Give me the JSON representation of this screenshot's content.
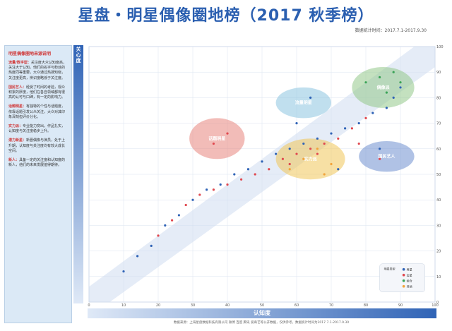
{
  "header": {
    "title": "星盘・明星偶像圈地榜（2017 秋季榜）",
    "period": "数据统计时间：2017.7.1-2017.9.30"
  },
  "sidebar": {
    "title": "明星偶像圈地来源说明",
    "items": [
      {
        "term": "流量/数字型：",
        "text": "关注度大众认知度高，关注大于认知。他们的名字与粉丝的热度同等重要，大众通过热搜知晓，关注度更高，辨识度略低于关注度。"
      },
      {
        "term": "国民艺人：",
        "text": "经受了时间的考验，观众积累的厚度，他们在各自领域都有很高的认可与口碑，有一定的影响力。"
      },
      {
        "term": "话题明星：",
        "text": "有独特的个性与话题度，依靠话题引发公众关注，大众对其印象深刻但评价分化。"
      },
      {
        "term": "实力派：",
        "text": "专业能力突出，作品扎实，认知度与关注度稳步上升。"
      },
      {
        "term": "潜力新星：",
        "text": "新晋偶像与演员，处于上升期，认知度与关注度均有较大成长空间。"
      },
      {
        "term": "新人：",
        "text": "具备一定的关注度和认知度的新人，他们的未来发展值得期待。"
      }
    ]
  },
  "axes": {
    "ylabel": "关\n心\n度",
    "xlabel": "认知度"
  },
  "footer": "数据来源：上海星盘数据科技有限公司 微博 百度 腾讯 爱奇艺等公开数据，仅供参考，数据统计时间为2017.7.1-2017.9.30",
  "legend": {
    "title": "明星类型",
    "items": [
      "男星",
      "女星",
      "组合",
      "其他"
    ]
  },
  "colors": {
    "male": "#2f63b6",
    "female": "#e0484f",
    "group": "#3aa357",
    "other": "#f2a33a",
    "accent": "#2b5fb0"
  },
  "chart_data": {
    "type": "scatter",
    "xlabel": "认知度",
    "ylabel": "关心度",
    "xlim": [
      0,
      100
    ],
    "ylim": [
      0,
      100
    ],
    "x_ticks": [
      0,
      10,
      20,
      30,
      40,
      50,
      60,
      70,
      80,
      90,
      100
    ],
    "y_ticks": [
      0,
      10,
      20,
      30,
      40,
      50,
      60,
      70,
      80,
      90,
      100
    ],
    "grid": true,
    "groups": [
      {
        "label": "国民艺人",
        "cx": 86,
        "cy": 57,
        "rx": 8,
        "ry": 6,
        "color": "#6f8fd0"
      },
      {
        "label": "话题明星",
        "cx": 37,
        "cy": 64,
        "rx": 8,
        "ry": 8,
        "color": "#e8857e"
      },
      {
        "label": "流量明星",
        "cx": 62,
        "cy": 78,
        "rx": 8,
        "ry": 6,
        "color": "#8cc4e0"
      },
      {
        "label": "偶像派",
        "cx": 85,
        "cy": 84,
        "rx": 9,
        "ry": 8,
        "color": "#93c98a"
      },
      {
        "label": "实力派",
        "cx": 64,
        "cy": 56,
        "rx": 10,
        "ry": 8,
        "color": "#f0c75a"
      }
    ],
    "series": [
      {
        "name": "男星",
        "color": "#2f63b6",
        "points": [
          [
            10,
            12
          ],
          [
            14,
            18
          ],
          [
            18,
            22
          ],
          [
            22,
            30
          ],
          [
            26,
            34
          ],
          [
            30,
            40
          ],
          [
            34,
            44
          ],
          [
            38,
            46
          ],
          [
            42,
            50
          ],
          [
            46,
            52
          ],
          [
            50,
            55
          ],
          [
            54,
            58
          ],
          [
            58,
            60
          ],
          [
            62,
            62
          ],
          [
            66,
            64
          ],
          [
            70,
            66
          ],
          [
            74,
            68
          ],
          [
            78,
            70
          ],
          [
            82,
            74
          ],
          [
            86,
            76
          ],
          [
            88,
            80
          ],
          [
            90,
            84
          ],
          [
            72,
            52
          ],
          [
            60,
            70
          ],
          [
            64,
            80
          ],
          [
            84,
            60
          ]
        ]
      },
      {
        "name": "女星",
        "color": "#e0484f",
        "points": [
          [
            20,
            26
          ],
          [
            24,
            32
          ],
          [
            28,
            38
          ],
          [
            32,
            42
          ],
          [
            36,
            44
          ],
          [
            40,
            46
          ],
          [
            44,
            48
          ],
          [
            48,
            50
          ],
          [
            52,
            52
          ],
          [
            56,
            56
          ],
          [
            60,
            58
          ],
          [
            64,
            60
          ],
          [
            68,
            62
          ],
          [
            72,
            64
          ],
          [
            76,
            68
          ],
          [
            80,
            72
          ],
          [
            84,
            56
          ],
          [
            36,
            62
          ],
          [
            40,
            66
          ],
          [
            58,
            54
          ],
          [
            66,
            58
          ],
          [
            78,
            62
          ]
        ]
      },
      {
        "name": "组合",
        "color": "#3aa357",
        "points": [
          [
            80,
            86
          ],
          [
            84,
            88
          ],
          [
            86,
            82
          ],
          [
            88,
            90
          ],
          [
            90,
            86
          ]
        ]
      },
      {
        "name": "其他",
        "color": "#f2a33a",
        "points": [
          [
            58,
            52
          ],
          [
            62,
            56
          ],
          [
            66,
            60
          ],
          [
            70,
            54
          ],
          [
            68,
            50
          ]
        ]
      }
    ]
  }
}
